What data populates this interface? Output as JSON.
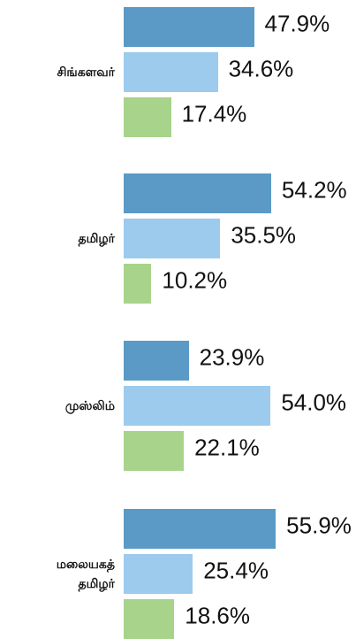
{
  "chart_data": {
    "type": "bar",
    "orientation": "horizontal",
    "categories": [
      "சிங்களவர்",
      "தமிழர்",
      "முஸ்லிம்",
      "மலையகத்\nதமிழர்"
    ],
    "series": [
      {
        "color": "#5b9ac7",
        "values": [
          47.9,
          54.2,
          23.9,
          55.9
        ],
        "value_labels": [
          "47.9%",
          "54.2%",
          "23.9%",
          "55.9%"
        ]
      },
      {
        "color": "#9ccbee",
        "values": [
          34.6,
          35.5,
          54.0,
          25.4
        ],
        "value_labels": [
          "34.6%",
          "35.5%",
          "54.0%",
          "25.4%"
        ]
      },
      {
        "color": "#a8d38a",
        "values": [
          17.4,
          10.2,
          22.1,
          18.6
        ],
        "value_labels": [
          "17.4%",
          "10.2%",
          "22.1%",
          "18.6%"
        ]
      }
    ]
  }
}
